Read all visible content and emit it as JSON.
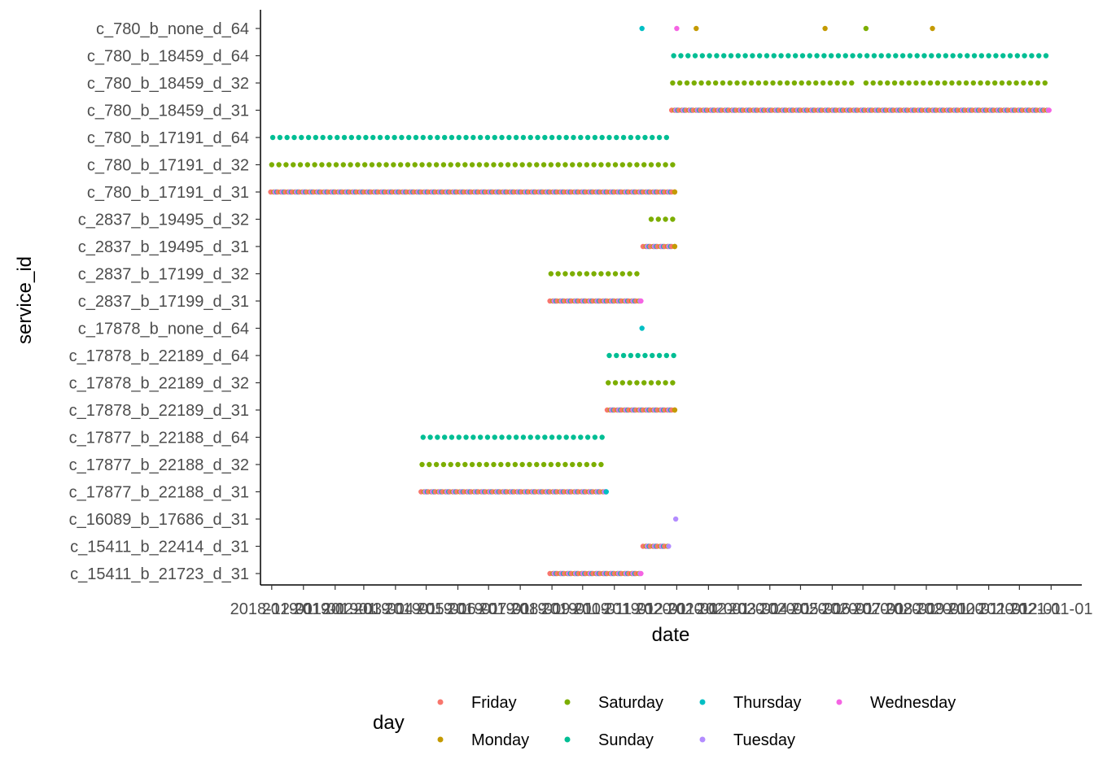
{
  "chart_data": {
    "type": "scatter",
    "xlabel": "date",
    "ylabel": "service_id",
    "x_axis": {
      "type": "date",
      "range": [
        "2018-11-20",
        "2021-01-31"
      ],
      "tick_labels": [
        "2018-12-01",
        "2019-01-01",
        "2019-02-01",
        "2019-03-01",
        "2019-04-01",
        "2019-05-01",
        "2019-06-01",
        "2019-07-01",
        "2019-08-01",
        "2019-09-01",
        "2019-10-01",
        "2019-11-01",
        "2019-12-01",
        "2020-01-01",
        "2020-02-01",
        "2020-03-01",
        "2020-04-01",
        "2020-05-01",
        "2020-06-01",
        "2020-07-01",
        "2020-08-01",
        "2020-09-01",
        "2020-10-01",
        "2020-11-01",
        "2020-12-01",
        "2021-01-01"
      ]
    },
    "y_categories": [
      "c_15411_b_21723_d_31",
      "c_15411_b_22414_d_31",
      "c_16089_b_17686_d_31",
      "c_17877_b_22188_d_31",
      "c_17877_b_22188_d_32",
      "c_17877_b_22188_d_64",
      "c_17878_b_22189_d_31",
      "c_17878_b_22189_d_32",
      "c_17878_b_22189_d_64",
      "c_17878_b_none_d_64",
      "c_2837_b_17199_d_31",
      "c_2837_b_17199_d_32",
      "c_2837_b_19495_d_31",
      "c_2837_b_19495_d_32",
      "c_780_b_17191_d_31",
      "c_780_b_17191_d_32",
      "c_780_b_17191_d_64",
      "c_780_b_18459_d_31",
      "c_780_b_18459_d_32",
      "c_780_b_18459_d_64",
      "c_780_b_none_d_64"
    ],
    "legend": {
      "title": "day",
      "placement": "bottom",
      "entries": [
        {
          "name": "Friday",
          "color": "#F8766D"
        },
        {
          "name": "Saturday",
          "color": "#7CAE00"
        },
        {
          "name": "Thursday",
          "color": "#00BFC4"
        },
        {
          "name": "Wednesday",
          "color": "#F564E3"
        },
        {
          "name": "Monday",
          "color": "#C49A00"
        },
        {
          "name": "Sunday",
          "color": "#00BE94"
        },
        {
          "name": "Tuesday",
          "color": "#B38CFF"
        }
      ]
    },
    "grid": false,
    "series_rules": [
      {
        "category": "c_780_b_18459_d_64",
        "days": [
          "Sunday"
        ],
        "start": "2019-12-29",
        "end": "2020-12-27"
      },
      {
        "category": "c_780_b_18459_d_32",
        "days": [
          "Saturday"
        ],
        "start": "2019-12-28",
        "end": "2020-12-26",
        "exclude": [
          "2020-06-27"
        ]
      },
      {
        "category": "c_780_b_18459_d_31",
        "days": [
          "Monday",
          "Tuesday",
          "Wednesday",
          "Thursday",
          "Friday"
        ],
        "start": "2019-12-27",
        "end": "2020-12-30"
      },
      {
        "category": "c_780_b_17191_d_64",
        "days": [
          "Sunday"
        ],
        "start": "2018-12-02",
        "end": "2019-12-22"
      },
      {
        "category": "c_780_b_17191_d_32",
        "days": [
          "Saturday"
        ],
        "start": "2018-12-01",
        "end": "2019-12-28"
      },
      {
        "category": "c_780_b_17191_d_31",
        "days": [
          "Monday",
          "Tuesday",
          "Wednesday",
          "Thursday",
          "Friday"
        ],
        "start": "2018-11-30",
        "end": "2019-12-30"
      },
      {
        "category": "c_2837_b_19495_d_32",
        "days": [
          "Saturday"
        ],
        "start": "2019-12-01",
        "end": "2019-12-28"
      },
      {
        "category": "c_2837_b_19495_d_31",
        "days": [
          "Monday",
          "Tuesday",
          "Wednesday",
          "Thursday",
          "Friday"
        ],
        "start": "2019-11-29",
        "end": "2019-12-30"
      },
      {
        "category": "c_2837_b_17199_d_32",
        "days": [
          "Saturday"
        ],
        "start": "2019-08-31",
        "end": "2019-11-23"
      },
      {
        "category": "c_2837_b_17199_d_31",
        "days": [
          "Monday",
          "Tuesday",
          "Wednesday",
          "Thursday",
          "Friday"
        ],
        "start": "2019-08-30",
        "end": "2019-11-27"
      },
      {
        "category": "c_17878_b_22189_d_64",
        "days": [
          "Sunday"
        ],
        "start": "2019-10-27",
        "end": "2019-12-29"
      },
      {
        "category": "c_17878_b_22189_d_32",
        "days": [
          "Saturday"
        ],
        "start": "2019-10-26",
        "end": "2019-12-28"
      },
      {
        "category": "c_17878_b_22189_d_31",
        "days": [
          "Monday",
          "Tuesday",
          "Wednesday",
          "Thursday",
          "Friday"
        ],
        "start": "2019-10-25",
        "end": "2019-12-30"
      },
      {
        "category": "c_17877_b_22188_d_64",
        "days": [
          "Sunday"
        ],
        "start": "2019-04-28",
        "end": "2019-10-20"
      },
      {
        "category": "c_17877_b_22188_d_32",
        "days": [
          "Saturday"
        ],
        "start": "2019-04-27",
        "end": "2019-10-19"
      },
      {
        "category": "c_17877_b_22188_d_31",
        "days": [
          "Monday",
          "Tuesday",
          "Wednesday",
          "Thursday",
          "Friday"
        ],
        "start": "2019-04-26",
        "end": "2019-10-24"
      },
      {
        "category": "c_15411_b_22414_d_31",
        "days": [
          "Monday",
          "Tuesday",
          "Wednesday",
          "Thursday",
          "Friday"
        ],
        "start": "2019-11-29",
        "end": "2019-12-24"
      },
      {
        "category": "c_15411_b_21723_d_31",
        "days": [
          "Monday",
          "Tuesday",
          "Wednesday",
          "Thursday",
          "Friday"
        ],
        "start": "2019-08-30",
        "end": "2019-11-27"
      }
    ],
    "points": [
      {
        "category": "c_780_b_none_d_64",
        "date": "2019-11-28",
        "day": "Thursday"
      },
      {
        "category": "c_780_b_none_d_64",
        "date": "2020-01-01",
        "day": "Wednesday"
      },
      {
        "category": "c_780_b_none_d_64",
        "date": "2020-01-20",
        "day": "Monday"
      },
      {
        "category": "c_780_b_none_d_64",
        "date": "2020-05-25",
        "day": "Monday"
      },
      {
        "category": "c_780_b_none_d_64",
        "date": "2020-07-04",
        "day": "Saturday"
      },
      {
        "category": "c_780_b_none_d_64",
        "date": "2020-09-07",
        "day": "Monday"
      },
      {
        "category": "c_780_b_17191_d_31",
        "date": "2019-12-30",
        "day": "Monday"
      },
      {
        "category": "c_2837_b_19495_d_31",
        "date": "2019-12-30",
        "day": "Monday"
      },
      {
        "category": "c_17878_b_none_d_64",
        "date": "2019-11-28",
        "day": "Thursday"
      },
      {
        "category": "c_17878_b_22189_d_31",
        "date": "2019-12-30",
        "day": "Monday"
      },
      {
        "category": "c_17877_b_22188_d_31",
        "date": "2019-10-24",
        "day": "Thursday"
      },
      {
        "category": "c_16089_b_17686_d_31",
        "date": "2019-12-31",
        "day": "Tuesday"
      }
    ]
  }
}
